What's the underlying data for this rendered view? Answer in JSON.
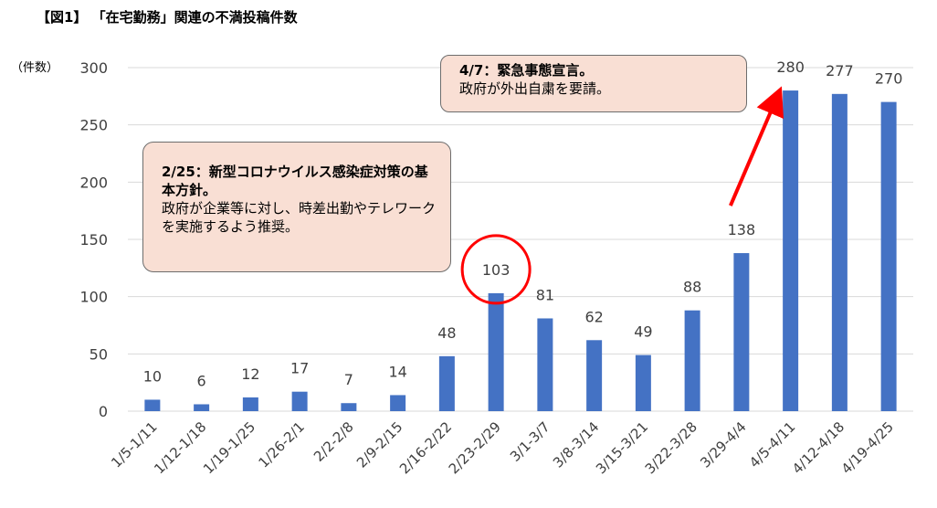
{
  "title": "【図1】 「在宅勤務」関連の不満投稿件数",
  "unit_label": "（件数）",
  "chart_data": {
    "type": "bar",
    "categories": [
      "1/5-1/11",
      "1/12-1/18",
      "1/19-1/25",
      "1/26-2/1",
      "2/2-2/8",
      "2/9-2/15",
      "2/16-2/22",
      "2/23-2/29",
      "3/1-3/7",
      "3/8-3/14",
      "3/15-3/21",
      "3/22-3/28",
      "3/29-4/4",
      "4/5-4/11",
      "4/12-4/18",
      "4/19-4/25"
    ],
    "values": [
      10,
      6,
      12,
      17,
      7,
      14,
      48,
      103,
      81,
      62,
      49,
      88,
      138,
      280,
      277,
      270
    ],
    "ylim": [
      0,
      300
    ],
    "yticks": [
      0,
      50,
      100,
      150,
      200,
      250,
      300
    ],
    "grid": true,
    "bar_color": "#4472c4",
    "highlight_index": 7,
    "highlight_color": "#ff0000"
  },
  "callouts": {
    "left": {
      "head": "2/25：新型コロナウイルス感染症対策の基本方針。",
      "body": "政府が企業等に対し、時差出勤やテレワークを実施するよう推奨。"
    },
    "right": {
      "head": "4/7：緊急事態宣言。",
      "body": "政府が外出自粛を要請。"
    }
  }
}
